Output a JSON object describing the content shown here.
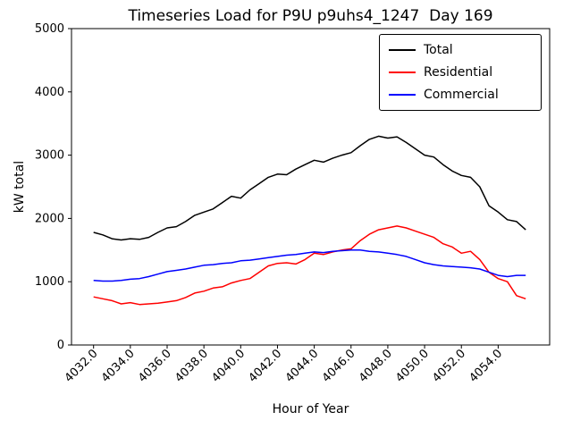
{
  "chart_data": {
    "type": "line",
    "title": "Timeseries Load for P9U p9uhs4_1247  Day 169",
    "xlabel": "Hour of Year",
    "ylabel": "kW total",
    "xlim": [
      4030.8,
      4056.8
    ],
    "ylim": [
      0,
      5000
    ],
    "x_ticks": [
      4032,
      4034,
      4036,
      4038,
      4040,
      4042,
      4044,
      4046,
      4048,
      4050,
      4052,
      4054
    ],
    "x_tick_labels": [
      "4032.0",
      "4034.0",
      "4036.0",
      "4038.0",
      "4040.0",
      "4042.0",
      "4044.0",
      "4046.0",
      "4048.0",
      "4050.0",
      "4052.0",
      "4054.0"
    ],
    "y_ticks": [
      0,
      1000,
      2000,
      3000,
      4000,
      5000
    ],
    "grid": false,
    "legend_position": "upper right",
    "x": [
      4032.0,
      4032.5,
      4033.0,
      4033.5,
      4034.0,
      4034.5,
      4035.0,
      4035.5,
      4036.0,
      4036.5,
      4037.0,
      4037.5,
      4038.0,
      4038.5,
      4039.0,
      4039.5,
      4040.0,
      4040.5,
      4041.0,
      4041.5,
      4042.0,
      4042.5,
      4043.0,
      4043.5,
      4044.0,
      4044.5,
      4045.0,
      4045.5,
      4046.0,
      4046.5,
      4047.0,
      4047.5,
      4048.0,
      4048.5,
      4049.0,
      4049.5,
      4050.0,
      4050.5,
      4051.0,
      4051.5,
      4052.0,
      4052.5,
      4053.0,
      4053.5,
      4054.0,
      4054.5,
      4055.0,
      4055.5
    ],
    "series": [
      {
        "name": "Total",
        "color": "#000000",
        "values": [
          1780,
          1740,
          1680,
          1660,
          1680,
          1670,
          1700,
          1780,
          1850,
          1870,
          1950,
          2050,
          2100,
          2150,
          2250,
          2350,
          2320,
          2450,
          2550,
          2650,
          2700,
          2690,
          2780,
          2850,
          2920,
          2890,
          2950,
          3000,
          3040,
          3150,
          3250,
          3300,
          3270,
          3290,
          3200,
          3100,
          3000,
          2970,
          2850,
          2750,
          2680,
          2650,
          2500,
          2200,
          2100,
          1980,
          1950,
          1820
        ]
      },
      {
        "name": "Residential",
        "color": "#ff0000",
        "values": [
          760,
          730,
          700,
          650,
          670,
          640,
          650,
          660,
          680,
          700,
          750,
          820,
          850,
          900,
          920,
          980,
          1020,
          1050,
          1150,
          1250,
          1290,
          1300,
          1280,
          1350,
          1450,
          1430,
          1470,
          1500,
          1520,
          1650,
          1750,
          1820,
          1850,
          1880,
          1850,
          1800,
          1750,
          1700,
          1600,
          1550,
          1450,
          1480,
          1350,
          1150,
          1050,
          1000,
          780,
          730
        ]
      },
      {
        "name": "Commercial",
        "color": "#0000ff",
        "values": [
          1020,
          1010,
          1010,
          1020,
          1040,
          1050,
          1080,
          1120,
          1160,
          1180,
          1200,
          1230,
          1260,
          1270,
          1290,
          1300,
          1330,
          1340,
          1360,
          1380,
          1400,
          1420,
          1430,
          1450,
          1470,
          1460,
          1480,
          1490,
          1500,
          1500,
          1480,
          1470,
          1450,
          1430,
          1400,
          1350,
          1300,
          1270,
          1250,
          1240,
          1230,
          1220,
          1200,
          1150,
          1100,
          1080,
          1100,
          1100
        ]
      }
    ]
  }
}
